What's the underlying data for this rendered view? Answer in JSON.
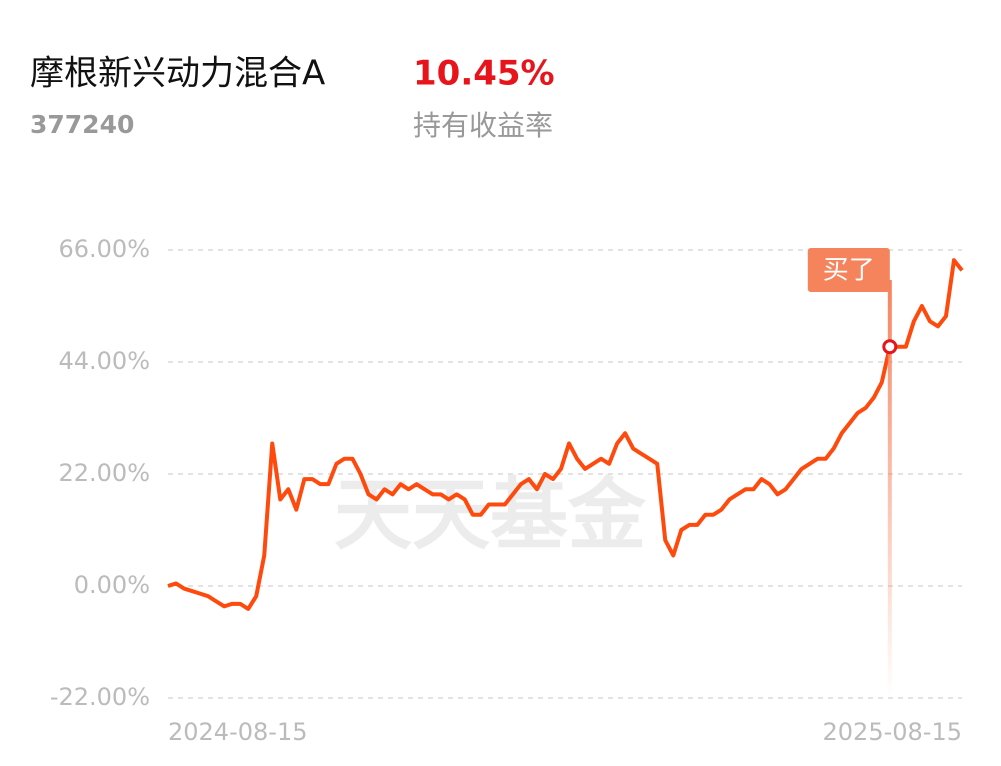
{
  "header": {
    "title": "摩根新兴动力混合A",
    "return": "10.45%",
    "code": "377240",
    "return_label": "持有收益率"
  },
  "chart_data": {
    "type": "line",
    "watermark": "天天基金",
    "categories": [
      "2024-08-15",
      null,
      null,
      null,
      null,
      null,
      null,
      null,
      null,
      null,
      null,
      null,
      null,
      null,
      null,
      null,
      null,
      null,
      null,
      null,
      null,
      null,
      null,
      null,
      null,
      null,
      null,
      null,
      null,
      null,
      null,
      null,
      null,
      null,
      null,
      null,
      null,
      null,
      null,
      null,
      null,
      null,
      null,
      null,
      null,
      null,
      null,
      null,
      null,
      null,
      null,
      null,
      null,
      null,
      null,
      null,
      null,
      null,
      null,
      null,
      null,
      null,
      null,
      null,
      null,
      null,
      null,
      null,
      null,
      null,
      null,
      null,
      null,
      null,
      null,
      null,
      null,
      null,
      null,
      null,
      null,
      null,
      null,
      null,
      null,
      null,
      null,
      null,
      null,
      null,
      null,
      null,
      null,
      null,
      null,
      null,
      null,
      null,
      null,
      "2025-08-15"
    ],
    "series": [
      {
        "color": "#ff4a0d",
        "values": [
          0,
          0.5,
          -0.5,
          -1,
          -1.5,
          -2,
          -3,
          -4,
          -3.5,
          -3.5,
          -4.5,
          -2,
          6,
          28,
          17,
          19,
          15,
          21,
          21,
          20,
          20,
          24,
          25,
          25,
          22,
          18,
          17,
          19,
          18,
          20,
          19,
          20,
          19,
          18,
          18,
          17,
          18,
          17,
          14,
          14,
          16,
          16,
          16,
          18,
          20,
          21,
          19,
          22,
          21,
          23,
          28,
          25,
          23,
          24,
          25,
          24,
          28,
          30,
          27,
          26,
          25,
          24,
          9,
          6,
          11,
          12,
          12,
          14,
          14,
          15,
          17,
          18,
          19,
          19,
          21,
          20,
          18,
          19,
          21,
          23,
          24,
          25,
          25,
          27,
          30,
          32,
          34,
          35,
          37,
          40,
          47,
          47,
          47,
          52,
          55,
          52,
          51,
          53,
          64,
          62
        ]
      }
    ],
    "annotation": {
      "text": "买了",
      "color": "#f5835c",
      "values": [
        null,
        null,
        null,
        null,
        null,
        null,
        null,
        null,
        null,
        null,
        null,
        null,
        null,
        null,
        null,
        null,
        null,
        null,
        null,
        null,
        null,
        null,
        null,
        null,
        null,
        null,
        null,
        null,
        null,
        null,
        null,
        null,
        null,
        null,
        null,
        null,
        null,
        null,
        null,
        null,
        null,
        null,
        null,
        null,
        null,
        null,
        null,
        null,
        null,
        null,
        null,
        null,
        null,
        null,
        null,
        null,
        null,
        null,
        null,
        null,
        null,
        null,
        null,
        null,
        null,
        null,
        null,
        null,
        null,
        null,
        null,
        null,
        null,
        null,
        null,
        null,
        null,
        null,
        null,
        null,
        null,
        null,
        null,
        null,
        null,
        null,
        null,
        null,
        null,
        null,
        47,
        null,
        null,
        null,
        null,
        null,
        null,
        null,
        null,
        null
      ]
    },
    "ylim": [
      -22,
      66
    ],
    "yticks": [
      {
        "value": -22,
        "label": "-22.00%"
      },
      {
        "value": 0,
        "label": "0.00%"
      },
      {
        "value": 22,
        "label": "22.00%"
      },
      {
        "value": 44,
        "label": "44.00%"
      },
      {
        "value": 66,
        "label": "66.00%"
      }
    ],
    "grid": true
  }
}
